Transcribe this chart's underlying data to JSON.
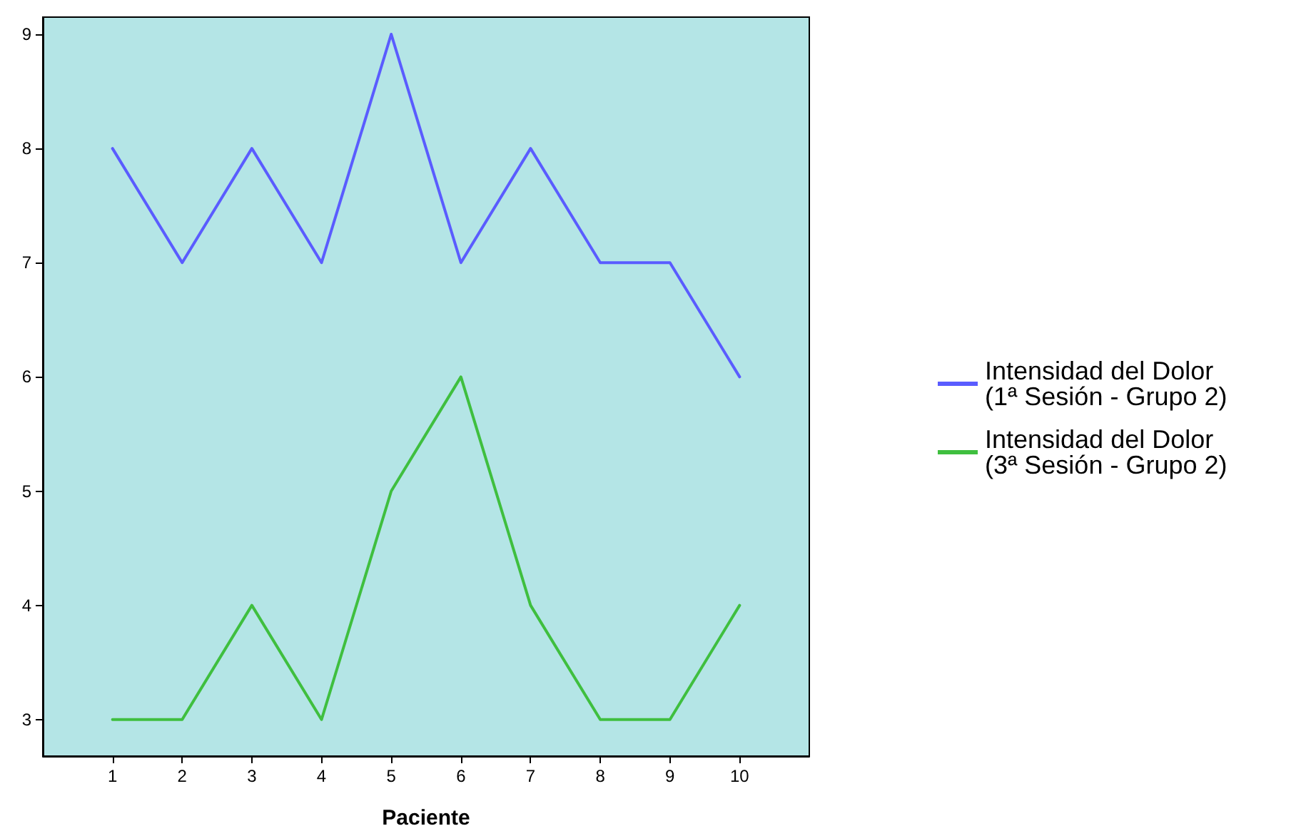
{
  "chart_data": {
    "type": "line",
    "xlabel": "Paciente",
    "x": [
      1,
      2,
      3,
      4,
      5,
      6,
      7,
      8,
      9,
      10
    ],
    "xlim": [
      0,
      11
    ],
    "xticks": [
      1,
      2,
      3,
      4,
      5,
      6,
      7,
      8,
      9,
      10
    ],
    "ylim": [
      2.68,
      9.15
    ],
    "yticks": [
      3,
      4,
      5,
      6,
      7,
      8,
      9
    ],
    "series": [
      {
        "name": "Intensidad del Dolor\n(1ª Sesión - Grupo 2)",
        "color": "#5a5cff",
        "values": [
          8,
          7,
          8,
          7,
          9,
          7,
          8,
          7,
          7,
          6
        ]
      },
      {
        "name": "Intensidad del Dolor\n(3ª Sesión - Grupo 2)",
        "color": "#3fbf3f",
        "values": [
          3,
          3,
          4,
          3,
          5,
          6,
          4,
          3,
          3,
          4
        ]
      }
    ],
    "grid": false,
    "legend": "right",
    "marker": "none",
    "line_style": "solid"
  }
}
